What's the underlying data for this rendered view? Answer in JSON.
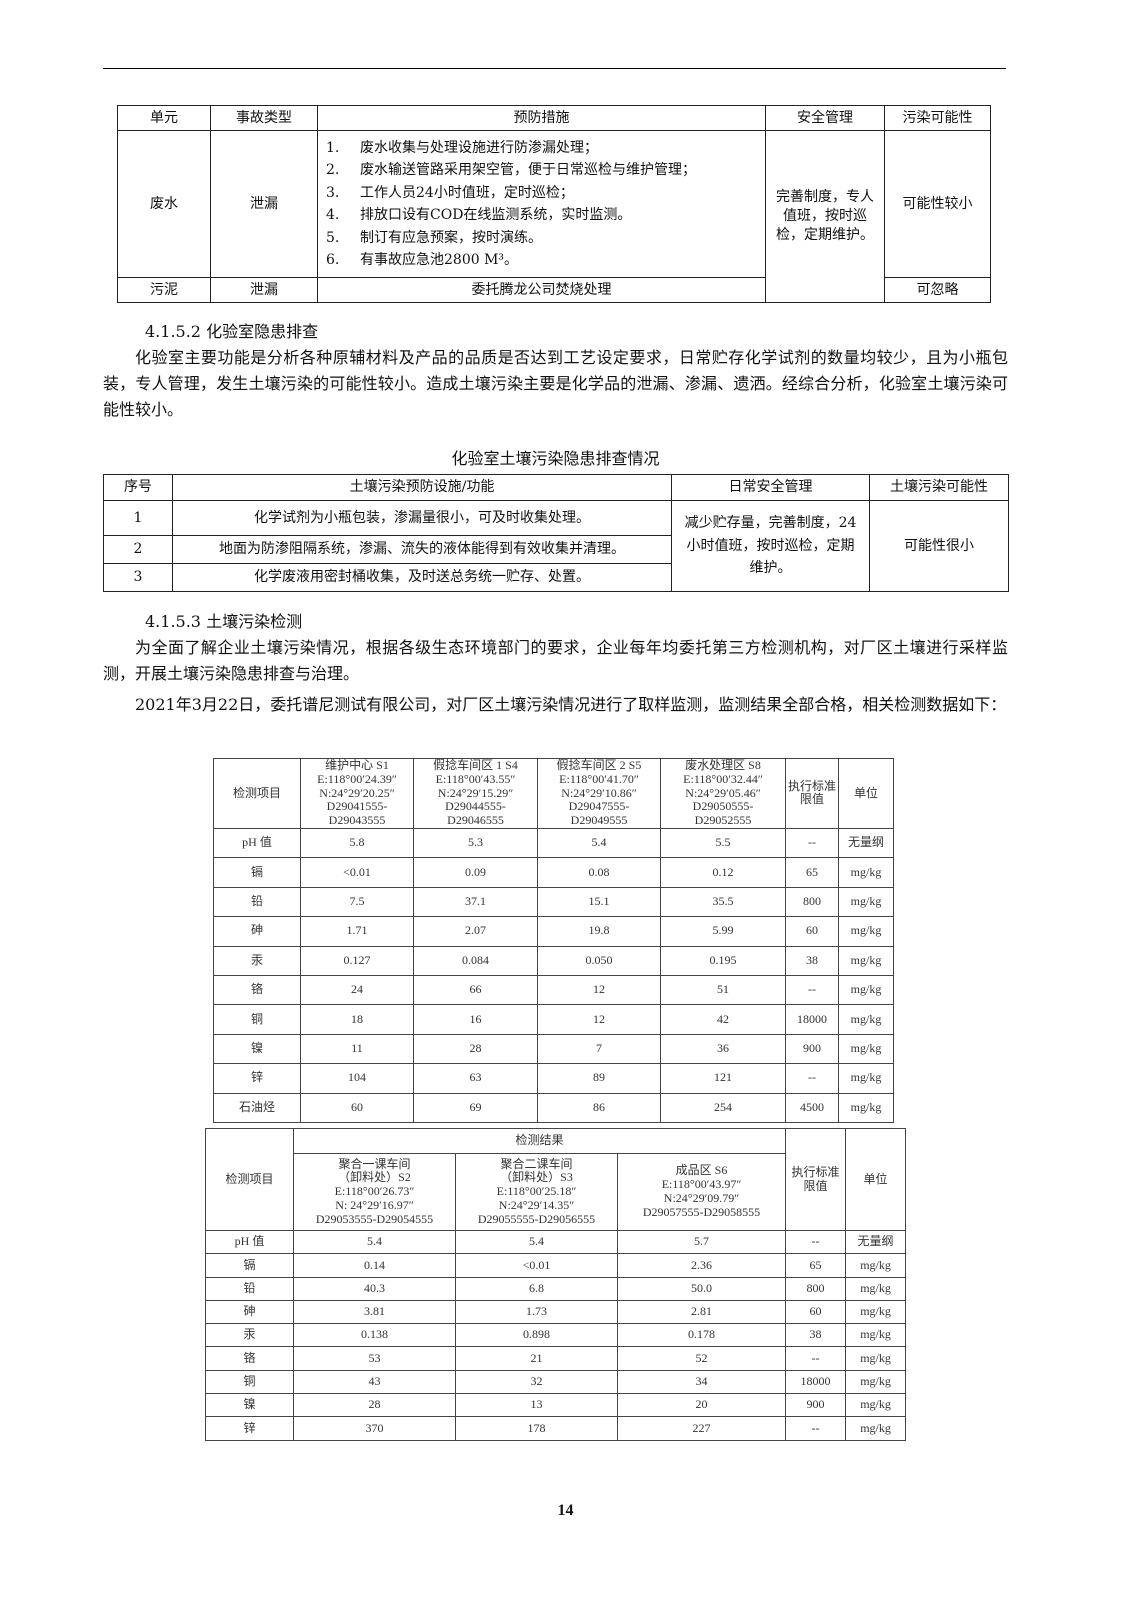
{
  "table1": {
    "headers": [
      "单元",
      "事故类型",
      "预防措施",
      "安全管理",
      "污染可能性"
    ],
    "wastewater": {
      "unit": "废水",
      "type": "泄漏",
      "measures": [
        [
          "1.",
          "废水收集与处理设施进行防渗漏处理；"
        ],
        [
          "2.",
          "废水输送管路采用架空管，便于日常巡检与维护管理；"
        ],
        [
          "3.",
          "工作人员24小时值班，定时巡检；"
        ],
        [
          "4.",
          "排放口设有COD在线监测系统，实时监测。"
        ],
        [
          "5.",
          "制订有应急预案，按时演练。"
        ],
        [
          "6.",
          "有事故应急池2800 M³。"
        ]
      ],
      "management": "完善制度，专人值班，按时巡检，定期维护。",
      "possibility": "可能性较小"
    },
    "sludge": {
      "unit": "污泥",
      "type": "泄漏",
      "measure": "委托腾龙公司焚烧处理",
      "possibility": "可忽略"
    }
  },
  "sec2": {
    "heading": "4.1.5.2 化验室隐患排查",
    "para": "化验室主要功能是分析各种原辅材料及产品的品质是否达到工艺设定要求，日常贮存化学试剂的数量均较少，且为小瓶包装，专人管理，发生土壤污染的可能性较小。造成土壤污染主要是化学品的泄漏、渗漏、遗洒。经综合分析，化验室土壤污染可能性较小。",
    "caption": "化验室土壤污染隐患排查情况"
  },
  "table2": {
    "headers": [
      "序号",
      "土壤污染预防设施/功能",
      "日常安全管理",
      "土壤污染可能性"
    ],
    "rows": [
      [
        "1",
        "化学试剂为小瓶包装，渗漏量很小，可及时收集处理。"
      ],
      [
        "2",
        "地面为防渗阻隔系统，渗漏、流失的液体能得到有效收集并清理。"
      ],
      [
        "3",
        "化学废液用密封桶收集，及时送总务统一贮存、处置。"
      ]
    ],
    "management": "减少贮存量，完善制度，24小时值班，按时巡检，定期维护。",
    "possibility": "可能性很小"
  },
  "sec3": {
    "heading": "4.1.5.3 土壤污染检测",
    "para1": "为全面了解企业土壤污染情况，根据各级生态环境部门的要求，企业每年均委托第三方检测机构，对厂区土壤进行采样监测，开展土壤污染隐患排查与治理。",
    "para2": "2021年3月22日，委托谱尼测试有限公司，对厂区土壤污染情况进行了取样监测，监测结果全部合格，相关检测数据如下："
  },
  "scan1": {
    "headers": [
      "检测项目",
      "维护中心 S1\nE:118°00′24.39″\nN:24°29′20.25″\nD29041555-\nD29043555",
      "假捻车间区 1 S4\nE:118°00′43.55″\nN:24°29′15.29″\nD29044555-\nD29046555",
      "假捻车间区 2 S5\nE:118°00′41.70″\nN:24°29′10.86″\nD29047555-\nD29049555",
      "废水处理区 S8\nE:118°00′32.44″\nN:24°29′05.46″\nD29050555-\nD29052555",
      "执行标准限值",
      "单位"
    ],
    "rows": [
      [
        "pH 值",
        "5.8",
        "5.3",
        "5.4",
        "5.5",
        "--",
        "无量纲"
      ],
      [
        "镉",
        "<0.01",
        "0.09",
        "0.08",
        "0.12",
        "65",
        "mg/kg"
      ],
      [
        "铅",
        "7.5",
        "37.1",
        "15.1",
        "35.5",
        "800",
        "mg/kg"
      ],
      [
        "砷",
        "1.71",
        "2.07",
        "19.8",
        "5.99",
        "60",
        "mg/kg"
      ],
      [
        "汞",
        "0.127",
        "0.084",
        "0.050",
        "0.195",
        "38",
        "mg/kg"
      ],
      [
        "铬",
        "24",
        "66",
        "12",
        "51",
        "--",
        "mg/kg"
      ],
      [
        "铜",
        "18",
        "16",
        "12",
        "42",
        "18000",
        "mg/kg"
      ],
      [
        "镍",
        "11",
        "28",
        "7",
        "36",
        "900",
        "mg/kg"
      ],
      [
        "锌",
        "104",
        "63",
        "89",
        "121",
        "--",
        "mg/kg"
      ],
      [
        "石油烃",
        "60",
        "69",
        "86",
        "254",
        "4500",
        "mg/kg"
      ]
    ]
  },
  "scan2": {
    "item_label": "检测项目",
    "group_label": "检测结果",
    "limit_label": "执行标准限值",
    "unit_label": "单位",
    "sites": [
      "聚合一课车间\n（卸料处）S2\nE:118°00′26.73″\nN: 24°29′16.97″\nD29053555-D29054555",
      "聚合二课车间\n（卸料处）S3\nE:118°00′25.18″\nN:24°29′14.35″\nD29055555-D29056555",
      "成品区 S6\nE:118°00′43.97″\nN:24°29′09.79″\nD29057555-D29058555"
    ],
    "rows": [
      [
        "pH 值",
        "5.4",
        "5.4",
        "5.7",
        "--",
        "无量纲"
      ],
      [
        "镉",
        "0.14",
        "<0.01",
        "2.36",
        "65",
        "mg/kg"
      ],
      [
        "铅",
        "40.3",
        "6.8",
        "50.0",
        "800",
        "mg/kg"
      ],
      [
        "砷",
        "3.81",
        "1.73",
        "2.81",
        "60",
        "mg/kg"
      ],
      [
        "汞",
        "0.138",
        "0.898",
        "0.178",
        "38",
        "mg/kg"
      ],
      [
        "铬",
        "53",
        "21",
        "52",
        "--",
        "mg/kg"
      ],
      [
        "铜",
        "43",
        "32",
        "34",
        "18000",
        "mg/kg"
      ],
      [
        "镍",
        "28",
        "13",
        "20",
        "900",
        "mg/kg"
      ],
      [
        "锌",
        "370",
        "178",
        "227",
        "--",
        "mg/kg"
      ]
    ]
  },
  "page_number": "14"
}
